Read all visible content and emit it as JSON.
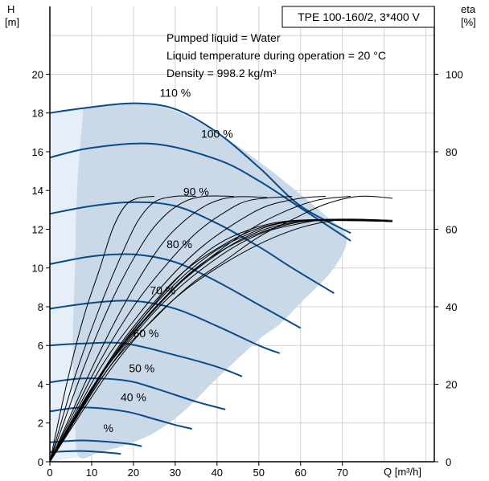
{
  "chart_data": {
    "type": "line",
    "pump_model": "TPE 100-160/2, 3*400 V",
    "info_lines": [
      "Pumped liquid = Water",
      "Liquid temperature during operation = 20 °C",
      "Density = 998.2 kg/m³"
    ],
    "y_axis_left": {
      "label": "H",
      "unit": "[m]",
      "ylim": [
        0,
        23.5
      ],
      "ticks": [
        0,
        2,
        4,
        6,
        8,
        10,
        12,
        14,
        16,
        18,
        20
      ]
    },
    "y_axis_right": {
      "label": "eta",
      "unit": "[%]",
      "ylim": [
        0,
        117.5
      ],
      "ticks": [
        0,
        20,
        40,
        60,
        80,
        100
      ]
    },
    "x_axis": {
      "label": "Q [m³/h]",
      "xlim": [
        0,
        92
      ],
      "ticks": [
        0,
        10,
        20,
        30,
        40,
        50,
        60,
        70
      ]
    },
    "grid": true,
    "colors": {
      "head_curve": "#0a4a8a",
      "operating_area": "#c9d9e8",
      "extended_area": "#e6eef7",
      "grid": "#d0d0d0",
      "efficiency": "#000000"
    },
    "operating_area": [
      [
        8,
        18.2
      ],
      [
        13,
        18.4
      ],
      [
        22,
        18.5
      ],
      [
        30,
        18.1
      ],
      [
        40,
        17.0
      ],
      [
        50,
        15.5
      ],
      [
        60,
        13.8
      ],
      [
        66,
        12.7
      ],
      [
        71,
        11.6
      ],
      [
        68,
        10.0
      ],
      [
        60,
        8.2
      ],
      [
        55,
        7.1
      ],
      [
        50,
        6.3
      ],
      [
        40,
        4.3
      ],
      [
        32,
        2.6
      ],
      [
        25,
        1.5
      ],
      [
        18,
        0.85
      ],
      [
        12,
        0.5
      ],
      [
        7,
        0.25
      ],
      [
        6,
        2.0
      ],
      [
        5.5,
        6.0
      ],
      [
        6,
        10.0
      ],
      [
        6.5,
        14.0
      ],
      [
        8,
        18.2
      ]
    ],
    "extended_area": [
      [
        0,
        18.0
      ],
      [
        8,
        18.2
      ],
      [
        6.5,
        14.0
      ],
      [
        6,
        10.0
      ],
      [
        5.5,
        6.0
      ],
      [
        6,
        2.0
      ],
      [
        7,
        0.25
      ],
      [
        0,
        0
      ]
    ],
    "head_curves": [
      {
        "speed": "110 %",
        "points": [
          [
            0,
            18.0
          ],
          [
            8,
            18.25
          ],
          [
            20,
            18.5
          ],
          [
            30,
            18.2
          ],
          [
            40,
            17.0
          ],
          [
            50,
            15.2
          ],
          [
            60,
            13.2
          ],
          [
            72,
            11.8
          ]
        ]
      },
      {
        "speed": "100 %",
        "points": [
          [
            0,
            15.7
          ],
          [
            10,
            16.2
          ],
          [
            25,
            16.4
          ],
          [
            40,
            15.6
          ],
          [
            50,
            14.5
          ],
          [
            60,
            13.1
          ],
          [
            72,
            11.4
          ]
        ]
      },
      {
        "speed": "90 %",
        "points": [
          [
            0,
            12.8
          ],
          [
            10,
            13.2
          ],
          [
            20,
            13.4
          ],
          [
            30,
            13.2
          ],
          [
            40,
            12.3
          ],
          [
            50,
            11.1
          ],
          [
            58,
            10.0
          ],
          [
            68,
            8.7
          ]
        ]
      },
      {
        "speed": "80 %",
        "points": [
          [
            0,
            10.2
          ],
          [
            10,
            10.6
          ],
          [
            20,
            10.7
          ],
          [
            30,
            10.3
          ],
          [
            40,
            9.3
          ],
          [
            50,
            8.1
          ],
          [
            60,
            6.9
          ]
        ]
      },
      {
        "speed": "70 %",
        "points": [
          [
            0,
            7.9
          ],
          [
            10,
            8.2
          ],
          [
            20,
            8.3
          ],
          [
            30,
            7.9
          ],
          [
            40,
            7.0
          ],
          [
            50,
            6.0
          ],
          [
            55,
            5.6
          ]
        ]
      },
      {
        "speed": "60 %",
        "points": [
          [
            0,
            6.0
          ],
          [
            8,
            6.1
          ],
          [
            18,
            6.1
          ],
          [
            30,
            5.5
          ],
          [
            40,
            4.9
          ],
          [
            46,
            4.4
          ]
        ]
      },
      {
        "speed": "50 %",
        "points": [
          [
            0,
            4.1
          ],
          [
            8,
            4.3
          ],
          [
            18,
            4.2
          ],
          [
            25,
            3.8
          ],
          [
            35,
            3.1
          ],
          [
            42,
            2.7
          ]
        ]
      },
      {
        "speed": "40 %",
        "points": [
          [
            0,
            2.6
          ],
          [
            8,
            2.8
          ],
          [
            18,
            2.6
          ],
          [
            25,
            2.2
          ],
          [
            30,
            1.9
          ],
          [
            34,
            1.7
          ]
        ]
      },
      {
        "speed": "30 %",
        "points": [
          [
            0,
            1.0
          ],
          [
            8,
            1.1
          ],
          [
            18,
            0.95
          ],
          [
            22,
            0.8
          ]
        ]
      },
      {
        "speed": "",
        "points": [
          [
            0,
            0.5
          ],
          [
            8,
            0.55
          ],
          [
            15,
            0.45
          ],
          [
            17,
            0.4
          ]
        ]
      }
    ],
    "speed_labels": [
      {
        "text": "110 %",
        "x": 30,
        "y": 18.5
      },
      {
        "text": "100 %",
        "x": 40,
        "y": 16.4
      },
      {
        "text": "90 %",
        "x": 35,
        "y": 13.4
      },
      {
        "text": "80 %",
        "x": 31,
        "y": 10.7
      },
      {
        "text": "70 %",
        "x": 27,
        "y": 8.3
      },
      {
        "text": "60 %",
        "x": 23,
        "y": 6.1
      },
      {
        "text": "50 %",
        "x": 22,
        "y": 4.3
      },
      {
        "text": "40 %",
        "x": 20,
        "y": 2.8
      },
      {
        "text": "%",
        "x": 14,
        "y": 1.2
      }
    ],
    "efficiency_curves": [
      {
        "points": [
          [
            0,
            0
          ],
          [
            4,
            20
          ],
          [
            8,
            37
          ],
          [
            12,
            50
          ],
          [
            15,
            60
          ],
          [
            18,
            66
          ],
          [
            21,
            68
          ],
          [
            25,
            68.5
          ]
        ]
      },
      {
        "points": [
          [
            0,
            0
          ],
          [
            6,
            22
          ],
          [
            12,
            40
          ],
          [
            17,
            53
          ],
          [
            21,
            62
          ],
          [
            25,
            67
          ],
          [
            30,
            68.5
          ],
          [
            35,
            68.5
          ]
        ]
      },
      {
        "points": [
          [
            0,
            0
          ],
          [
            8,
            24
          ],
          [
            15,
            42
          ],
          [
            22,
            56
          ],
          [
            27,
            63
          ],
          [
            32,
            67
          ],
          [
            37,
            68.5
          ],
          [
            44,
            68.5
          ]
        ]
      },
      {
        "points": [
          [
            0,
            0
          ],
          [
            10,
            24
          ],
          [
            18,
            41
          ],
          [
            26,
            55
          ],
          [
            32,
            62
          ],
          [
            38,
            66.5
          ],
          [
            44,
            68.3
          ],
          [
            52,
            68.2
          ]
        ]
      },
      {
        "points": [
          [
            0,
            0
          ],
          [
            11,
            24
          ],
          [
            20,
            40
          ],
          [
            28,
            51
          ],
          [
            35,
            59
          ],
          [
            42,
            64.5
          ],
          [
            48,
            67.5
          ],
          [
            58,
            68.5
          ]
        ]
      },
      {
        "points": [
          [
            0,
            0
          ],
          [
            12,
            24
          ],
          [
            22,
            39
          ],
          [
            30,
            49
          ],
          [
            37,
            56
          ],
          [
            45,
            62
          ],
          [
            52,
            66
          ],
          [
            60,
            68
          ],
          [
            66,
            68.5
          ]
        ]
      },
      {
        "points": [
          [
            0,
            0
          ],
          [
            13,
            24
          ],
          [
            24,
            38
          ],
          [
            32,
            47
          ],
          [
            40,
            54
          ],
          [
            48,
            60
          ],
          [
            56,
            64.5
          ],
          [
            64,
            67.5
          ],
          [
            72,
            68.5
          ]
        ]
      },
      {
        "points": [
          [
            0,
            0
          ],
          [
            14,
            24
          ],
          [
            26,
            38
          ],
          [
            34,
            46
          ],
          [
            42,
            52
          ],
          [
            50,
            58
          ],
          [
            58,
            62.5
          ],
          [
            66,
            66.5
          ],
          [
            74,
            68.5
          ],
          [
            82,
            68
          ]
        ]
      },
      {
        "points": [
          [
            0,
            0
          ],
          [
            14,
            23
          ],
          [
            24,
            36
          ],
          [
            32,
            44
          ],
          [
            40,
            50
          ],
          [
            48,
            55
          ],
          [
            55,
            58.5
          ],
          [
            62,
            61
          ],
          [
            70,
            62.5
          ],
          [
            76,
            62.5
          ],
          [
            82,
            62.3
          ]
        ]
      },
      {
        "points": [
          [
            0,
            0
          ],
          [
            12,
            21
          ],
          [
            22,
            35
          ],
          [
            30,
            44
          ],
          [
            38,
            51
          ],
          [
            45,
            56
          ],
          [
            52,
            59.5
          ],
          [
            60,
            61.5
          ],
          [
            66,
            62.5
          ],
          [
            74,
            62.5
          ],
          [
            82,
            62
          ]
        ]
      },
      {
        "points": [
          [
            0,
            0
          ],
          [
            10,
            19
          ],
          [
            20,
            33
          ],
          [
            28,
            43
          ],
          [
            35,
            50
          ],
          [
            42,
            55
          ],
          [
            50,
            59
          ],
          [
            58,
            61.5
          ],
          [
            66,
            62.5
          ],
          [
            76,
            62.5
          ],
          [
            82,
            62
          ]
        ]
      },
      {
        "points": [
          [
            0,
            0
          ],
          [
            9,
            17
          ],
          [
            18,
            31
          ],
          [
            26,
            42
          ],
          [
            33,
            50
          ],
          [
            40,
            56
          ],
          [
            48,
            60
          ],
          [
            56,
            62
          ],
          [
            66,
            62.5
          ],
          [
            82,
            62
          ]
        ]
      },
      {
        "points": [
          [
            0,
            0
          ],
          [
            8,
            15
          ],
          [
            16,
            29
          ],
          [
            24,
            40
          ],
          [
            32,
            49
          ],
          [
            40,
            55
          ],
          [
            48,
            59.5
          ],
          [
            56,
            61.8
          ],
          [
            66,
            62.5
          ],
          [
            82,
            62
          ]
        ]
      },
      {
        "points": [
          [
            0,
            0
          ],
          [
            7,
            13
          ],
          [
            15,
            27
          ],
          [
            23,
            38
          ],
          [
            31,
            47
          ],
          [
            39,
            54
          ],
          [
            47,
            58.5
          ],
          [
            55,
            61.5
          ],
          [
            66,
            62.4
          ],
          [
            82,
            62
          ]
        ]
      },
      {
        "points": [
          [
            0,
            0
          ],
          [
            6,
            11
          ],
          [
            14,
            25
          ],
          [
            22,
            36
          ],
          [
            30,
            45
          ],
          [
            38,
            52
          ],
          [
            46,
            57.5
          ],
          [
            54,
            60.8
          ],
          [
            64,
            62.2
          ],
          [
            82,
            62
          ]
        ]
      }
    ]
  }
}
